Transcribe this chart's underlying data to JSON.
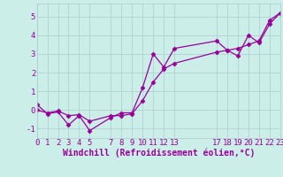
{
  "xlabel": "Windchill (Refroidissement éolien,°C)",
  "background_color": "#cceee8",
  "grid_color": "#aacccc",
  "line_color": "#990099",
  "line1_x": [
    0,
    1,
    2,
    3,
    4,
    5,
    7,
    8,
    9,
    10,
    11,
    12,
    13,
    17,
    18,
    19,
    20,
    21,
    22,
    23
  ],
  "line1_y": [
    0.3,
    -0.2,
    -0.1,
    -0.8,
    -0.3,
    -1.1,
    -0.4,
    -0.15,
    -0.15,
    1.2,
    3.0,
    2.3,
    3.3,
    3.7,
    3.2,
    2.9,
    4.0,
    3.6,
    4.6,
    5.2
  ],
  "line2_x": [
    0,
    1,
    2,
    3,
    4,
    5,
    7,
    8,
    9,
    10,
    11,
    12,
    13,
    17,
    18,
    19,
    20,
    21,
    22,
    23
  ],
  "line2_y": [
    0.0,
    -0.15,
    -0.05,
    -0.3,
    -0.25,
    -0.6,
    -0.3,
    -0.3,
    -0.2,
    0.5,
    1.5,
    2.2,
    2.5,
    3.1,
    3.2,
    3.3,
    3.5,
    3.7,
    4.8,
    5.2
  ],
  "xlim": [
    0,
    23
  ],
  "ylim": [
    -1.5,
    5.7
  ],
  "xticks": [
    0,
    1,
    2,
    3,
    4,
    5,
    7,
    8,
    9,
    10,
    11,
    12,
    13,
    17,
    18,
    19,
    20,
    21,
    22,
    23
  ],
  "yticks": [
    -1,
    0,
    1,
    2,
    3,
    4,
    5
  ],
  "tick_fontsize": 6.5,
  "xlabel_fontsize": 7,
  "marker": "D",
  "markersize": 2.5,
  "linewidth": 0.9
}
